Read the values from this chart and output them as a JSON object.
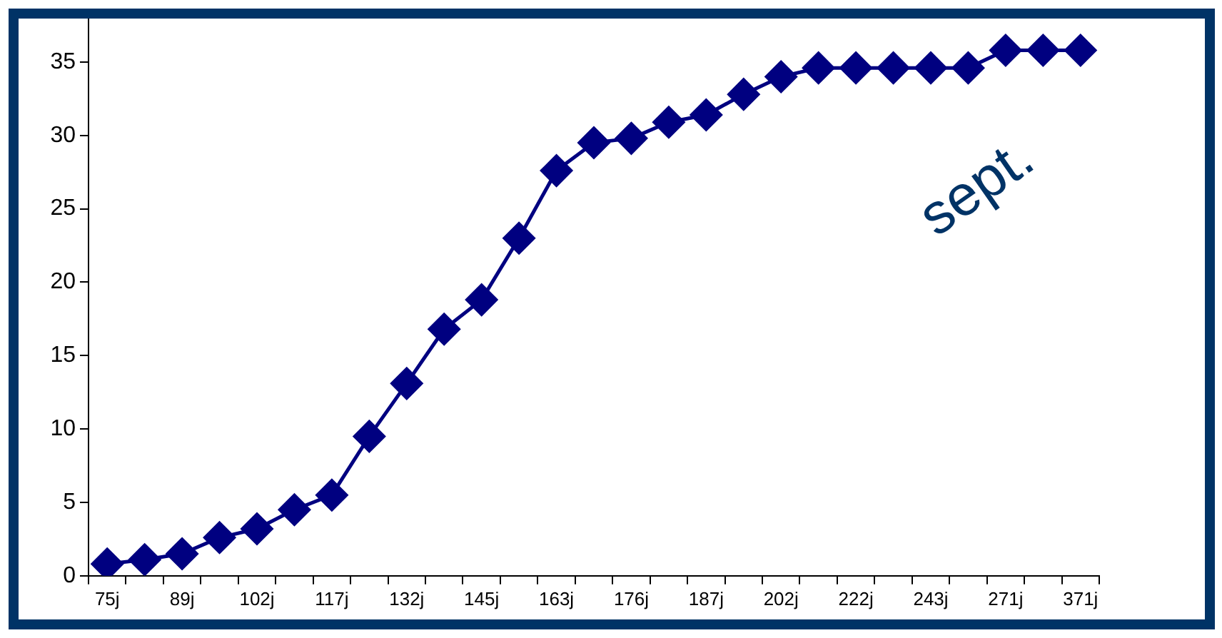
{
  "chart_data": {
    "type": "line",
    "categories": [
      "75j",
      null,
      "89j",
      null,
      "102j",
      null,
      "117j",
      null,
      "132j",
      null,
      "145j",
      null,
      "163j",
      null,
      "176j",
      null,
      "187j",
      null,
      "202j",
      null,
      "222j",
      null,
      "243j",
      null,
      "271j",
      null,
      "371j"
    ],
    "series": [
      {
        "color": "#000080",
        "values": [
          0.8,
          1.1,
          1.5,
          2.6,
          3.2,
          4.5,
          5.5,
          9.5,
          13.1,
          16.8,
          18.8,
          23.0,
          27.6,
          29.5,
          29.8,
          30.9,
          31.4,
          32.8,
          34.0,
          34.6,
          34.6,
          34.6,
          34.6,
          34.6,
          35.8,
          35.8,
          35.8
        ]
      }
    ],
    "ylim": [
      0,
      38
    ],
    "yticks": [
      0,
      5,
      10,
      15,
      20,
      25,
      30,
      35
    ],
    "grid": false,
    "legend": false,
    "marker": "diamond",
    "line_style": "solid",
    "annotations": [
      "sept."
    ]
  }
}
